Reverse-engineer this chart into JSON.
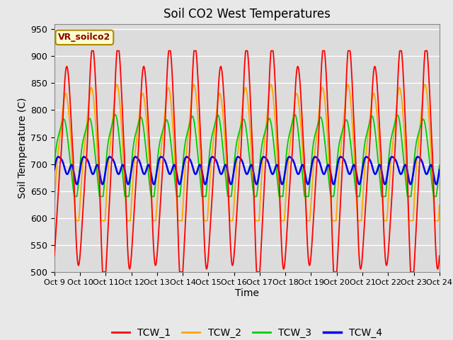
{
  "title": "Soil CO2 West Temperatures",
  "xlabel": "Time",
  "ylabel": "Soil Temperature (C)",
  "ylim": [
    500,
    960
  ],
  "yticks": [
    500,
    550,
    600,
    650,
    700,
    750,
    800,
    850,
    900,
    950
  ],
  "x_labels": [
    "Oct 9",
    "Oct 10",
    "Oct 11",
    "Oct 12",
    "Oct 13",
    "Oct 14",
    "Oct 15",
    "Oct 16",
    "Oct 17",
    "Oct 18",
    "Oct 19",
    "Oct 20",
    "Oct 21",
    "Oct 22",
    "Oct 23",
    "Oct 24"
  ],
  "annotation": "VR_soilco2",
  "background_color": "#e8e8e8",
  "plot_bg_color": "#dcdcdc",
  "grid_color": "#ffffff",
  "colors": {
    "TCW_1": "#ff0000",
    "TCW_2": "#ffa500",
    "TCW_3": "#00cc00",
    "TCW_4": "#0000ee"
  },
  "legend_entries": [
    "TCW_1",
    "TCW_2",
    "TCW_3",
    "TCW_4"
  ]
}
